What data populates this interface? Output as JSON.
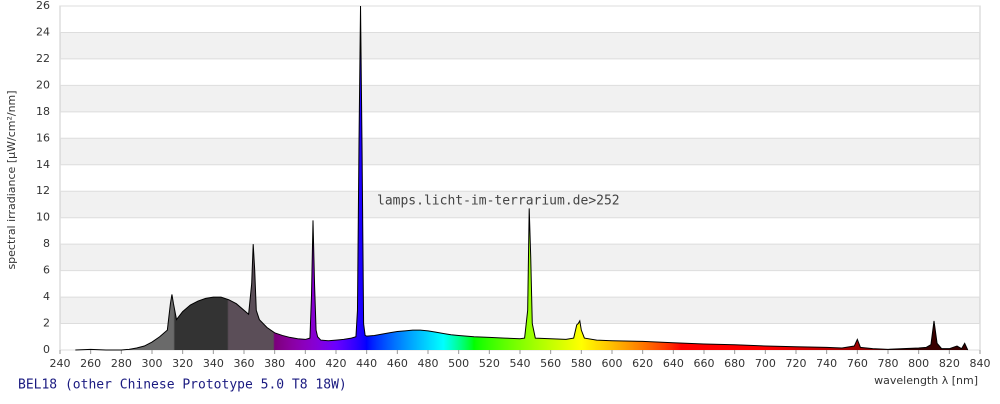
{
  "chart_data": {
    "type": "area",
    "subtitle": "BEL18 (other Chinese Prototype 5.0 T8 18W)",
    "annotation": "lamps.licht-im-terrarium.de>252",
    "x_label": "wavelength λ [nm]",
    "y_label": "spectral irradiance [µW/cm²/nm]",
    "x": [
      250,
      260,
      270,
      280,
      285,
      290,
      295,
      300,
      305,
      310,
      312,
      313,
      314,
      316,
      320,
      325,
      330,
      335,
      340,
      345,
      350,
      355,
      360,
      363,
      365,
      366,
      367,
      368,
      370,
      375,
      380,
      385,
      390,
      395,
      400,
      403,
      404,
      405,
      406,
      407,
      408,
      410,
      415,
      420,
      425,
      430,
      433,
      434,
      435,
      436,
      437,
      438,
      439,
      440,
      445,
      450,
      455,
      460,
      465,
      470,
      475,
      480,
      485,
      490,
      495,
      500,
      510,
      520,
      530,
      540,
      543,
      545,
      546,
      547,
      548,
      550,
      560,
      570,
      575,
      577,
      578,
      579,
      580,
      582,
      590,
      600,
      620,
      640,
      660,
      680,
      700,
      720,
      740,
      750,
      758,
      760,
      762,
      770,
      780,
      790,
      800,
      805,
      808,
      810,
      812,
      815,
      820,
      825,
      828,
      830,
      832
    ],
    "values": [
      0,
      0.05,
      0,
      0,
      0.05,
      0.15,
      0.3,
      0.6,
      1.0,
      1.5,
      3.5,
      4.2,
      3.5,
      2.3,
      2.9,
      3.4,
      3.7,
      3.9,
      4.0,
      4.0,
      3.8,
      3.5,
      3.0,
      2.7,
      5.0,
      8.0,
      6.0,
      3.0,
      2.3,
      1.7,
      1.3,
      1.1,
      0.95,
      0.85,
      0.8,
      0.9,
      4.0,
      9.8,
      5.0,
      1.5,
      1.0,
      0.75,
      0.7,
      0.75,
      0.8,
      0.9,
      1.0,
      3,
      15.7,
      26,
      15,
      2,
      1.1,
      1.05,
      1.1,
      1.2,
      1.3,
      1.4,
      1.45,
      1.5,
      1.5,
      1.45,
      1.35,
      1.25,
      1.15,
      1.1,
      1.0,
      0.95,
      0.9,
      0.85,
      0.9,
      3,
      10.7,
      7,
      2,
      0.9,
      0.85,
      0.8,
      0.9,
      1.9,
      2.0,
      2.2,
      1.5,
      0.9,
      0.75,
      0.7,
      0.65,
      0.55,
      0.45,
      0.4,
      0.3,
      0.25,
      0.2,
      0.15,
      0.3,
      0.8,
      0.2,
      0.1,
      0.05,
      0.1,
      0.15,
      0.2,
      0.4,
      2.2,
      0.5,
      0.1,
      0.1,
      0.3,
      0.1,
      0.5,
      0
    ],
    "xlim": [
      240,
      840
    ],
    "xticks": [
      240,
      260,
      280,
      300,
      320,
      340,
      360,
      380,
      400,
      420,
      440,
      460,
      480,
      500,
      520,
      540,
      560,
      580,
      600,
      620,
      640,
      660,
      680,
      700,
      720,
      740,
      760,
      780,
      800,
      820,
      840
    ],
    "ylim": [
      0,
      26
    ],
    "yticks": [
      0,
      2,
      4,
      6,
      8,
      10,
      12,
      14,
      16,
      18,
      20,
      22,
      24,
      26
    ]
  }
}
